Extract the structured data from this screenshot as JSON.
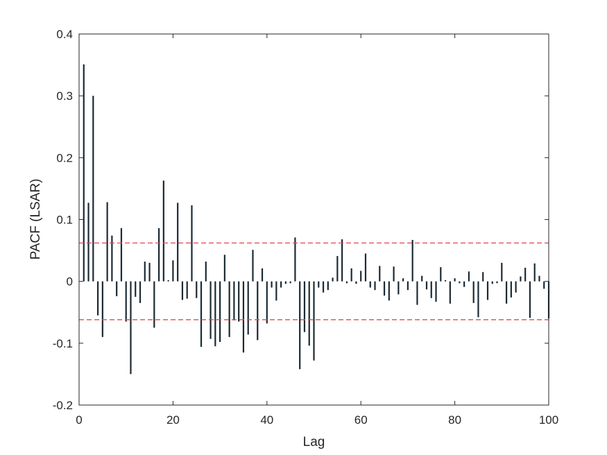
{
  "chart_data": {
    "type": "bar",
    "xlabel": "Lag",
    "ylabel": "PACF (LSAR)",
    "xlim": [
      0,
      100
    ],
    "ylim": [
      -0.2,
      0.4
    ],
    "xticks": [
      0,
      20,
      40,
      60,
      80,
      100
    ],
    "yticks": [
      -0.2,
      -0.1,
      0,
      0.1,
      0.2,
      0.3,
      0.4
    ],
    "xtick_labels": [
      "0",
      "20",
      "40",
      "60",
      "80",
      "100"
    ],
    "ytick_labels": [
      "-0.2",
      "-0.1",
      "0",
      "0.1",
      "0.2",
      "0.3",
      "0.4"
    ],
    "grid": false,
    "bar_color": "#1c2a33",
    "confidence_bounds": [
      0.062,
      -0.062
    ],
    "confidence_color": "#e8434b",
    "lags": [
      1,
      2,
      3,
      4,
      5,
      6,
      7,
      8,
      9,
      10,
      11,
      12,
      13,
      14,
      15,
      16,
      17,
      18,
      19,
      20,
      21,
      22,
      23,
      24,
      25,
      26,
      27,
      28,
      29,
      30,
      31,
      32,
      33,
      34,
      35,
      36,
      37,
      38,
      39,
      40,
      41,
      42,
      43,
      44,
      45,
      46,
      47,
      48,
      49,
      50,
      51,
      52,
      53,
      54,
      55,
      56,
      57,
      58,
      59,
      60,
      61,
      62,
      63,
      64,
      65,
      66,
      67,
      68,
      69,
      70,
      71,
      72,
      73,
      74,
      75,
      76,
      77,
      78,
      79,
      80,
      81,
      82,
      83,
      84,
      85,
      86,
      87,
      88,
      89,
      90,
      91,
      92,
      93,
      94,
      95,
      96,
      97,
      98,
      99,
      100
    ],
    "values": [
      0.351,
      0.127,
      0.3,
      -0.055,
      -0.09,
      0.128,
      0.074,
      -0.024,
      0.086,
      -0.065,
      -0.15,
      -0.025,
      -0.035,
      0.032,
      0.03,
      -0.075,
      0.086,
      0.163,
      0.002,
      0.034,
      0.127,
      -0.03,
      -0.028,
      0.123,
      -0.027,
      -0.106,
      0.032,
      -0.093,
      -0.105,
      -0.098,
      0.043,
      -0.09,
      -0.063,
      -0.065,
      -0.115,
      -0.086,
      0.051,
      -0.095,
      0.021,
      -0.068,
      -0.01,
      -0.031,
      -0.01,
      -0.004,
      -0.003,
      0.071,
      -0.142,
      -0.082,
      -0.104,
      -0.128,
      -0.01,
      -0.018,
      -0.014,
      0.006,
      0.041,
      0.068,
      -0.003,
      0.021,
      -0.004,
      0.017,
      0.045,
      -0.01,
      -0.014,
      0.025,
      -0.023,
      -0.031,
      0.024,
      -0.021,
      0.005,
      -0.014,
      0.067,
      -0.038,
      0.009,
      -0.013,
      -0.027,
      -0.033,
      0.023,
      0.002,
      -0.036,
      0.005,
      -0.003,
      -0.009,
      0.016,
      -0.035,
      -0.058,
      0.015,
      -0.03,
      -0.004,
      -0.003,
      0.03,
      -0.036,
      -0.026,
      -0.018,
      0.008,
      0.022,
      -0.059,
      0.029,
      0.009,
      -0.012,
      -0.06
    ]
  }
}
